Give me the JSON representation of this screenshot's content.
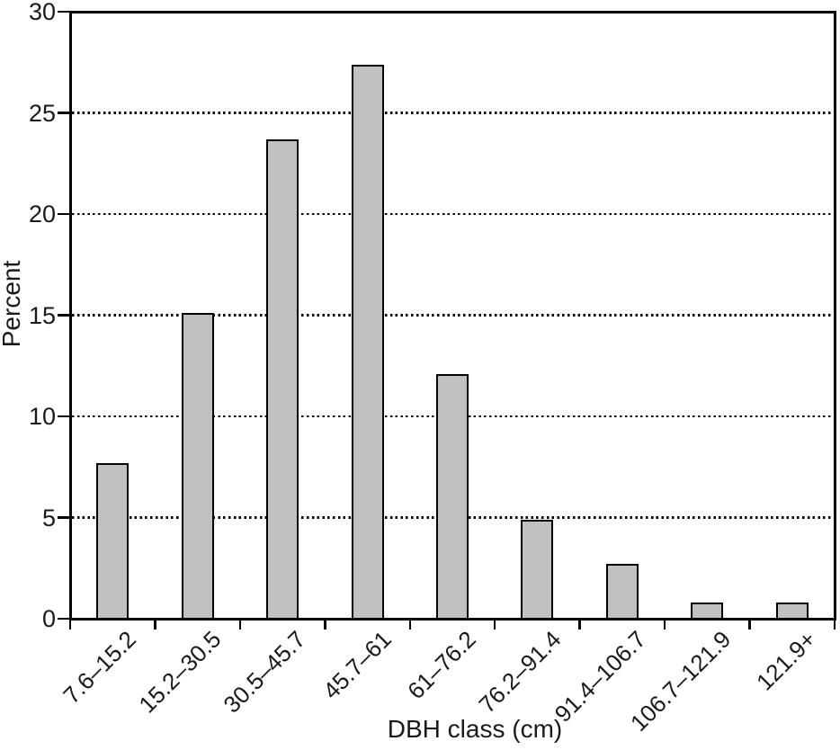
{
  "chart_data": {
    "type": "bar",
    "title": "",
    "xlabel": "DBH class (cm)",
    "ylabel": "Percent",
    "categories": [
      "7.6–15.2",
      "15.2–30.5",
      "30.5–45.7",
      "45.7–61",
      "61–76.2",
      "76.2–91.4",
      "91.4–106.7",
      "106.7–121.9",
      "121.9+"
    ],
    "values": [
      7.7,
      15.1,
      23.7,
      27.4,
      12.1,
      4.9,
      2.7,
      0.8,
      0.8
    ],
    "ylim": [
      0,
      30
    ],
    "yticks": [
      0,
      5,
      10,
      15,
      20,
      25,
      30
    ],
    "gridlines": [
      5,
      10,
      15,
      20,
      25
    ],
    "grid_style": "dotted",
    "legend_position": "none",
    "colors": {
      "bar_fill": "#c1c1c1",
      "bar_border": "#000000",
      "axis": "#000000",
      "text": "#1a1a1a",
      "background": "#ffffff"
    }
  }
}
